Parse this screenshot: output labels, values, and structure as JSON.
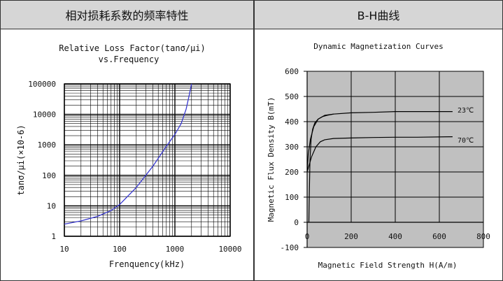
{
  "headers": {
    "left": "相对损耗系数的频率特性",
    "right": "B-H曲线"
  },
  "chart_data": [
    {
      "type": "line",
      "title": "Relative Loss Factor(tanσ/μi)",
      "subtitle": "vs.Frequency",
      "xlabel": "Frenquency(kHz)",
      "ylabel": "tanσ/μi(×10-6)",
      "x_scale": "log",
      "y_scale": "log",
      "xlim": [
        10,
        10000
      ],
      "ylim": [
        1,
        100000
      ],
      "x_ticks": [
        "10",
        "100",
        "1000",
        "10000"
      ],
      "y_ticks": [
        "1",
        "10",
        "100",
        "1000",
        "10000",
        "100000"
      ],
      "grid": true,
      "series": [
        {
          "color": "#3a3ad0",
          "x": [
            10,
            20,
            40,
            70,
            100,
            200,
            400,
            700,
            1000,
            1300,
            1600,
            1800,
            2000
          ],
          "y": [
            2.5,
            3.2,
            4.5,
            7,
            11,
            40,
            200,
            900,
            2200,
            5000,
            15000,
            40000,
            100000
          ]
        }
      ]
    },
    {
      "type": "line",
      "title": "Dynamic Magnetization Curves",
      "xlabel": "Magnetic Field Strength H(A/m)",
      "ylabel": "Magnetic Flux Density B(mT)",
      "xlim": [
        0,
        800
      ],
      "ylim": [
        -100,
        600
      ],
      "x_ticks": [
        "0",
        "200",
        "400",
        "600",
        "800"
      ],
      "y_ticks": [
        "-100",
        "0",
        "100",
        "200",
        "300",
        "400",
        "500",
        "600"
      ],
      "grid": true,
      "plot_background": "#c0c0c0",
      "series": [
        {
          "name": "23℃",
          "color": "#000000",
          "x": [
            0,
            5,
            15,
            30,
            50,
            80,
            120,
            200,
            300,
            400,
            550,
            660
          ],
          "y": [
            200,
            270,
            330,
            380,
            410,
            425,
            430,
            435,
            437,
            440,
            440,
            440
          ]
        },
        {
          "color": "#000000",
          "x": [
            8,
            10,
            13,
            18,
            25,
            35,
            50,
            70,
            90,
            120
          ],
          "y": [
            0,
            120,
            250,
            330,
            370,
            395,
            410,
            420,
            425,
            430
          ]
        },
        {
          "name": "70℃",
          "color": "#000000",
          "x": [
            0,
            10,
            20,
            40,
            60,
            80,
            120,
            200,
            300,
            400,
            500,
            660
          ],
          "y": [
            200,
            230,
            260,
            300,
            320,
            328,
            333,
            335,
            337,
            338,
            338,
            340
          ]
        }
      ]
    }
  ]
}
